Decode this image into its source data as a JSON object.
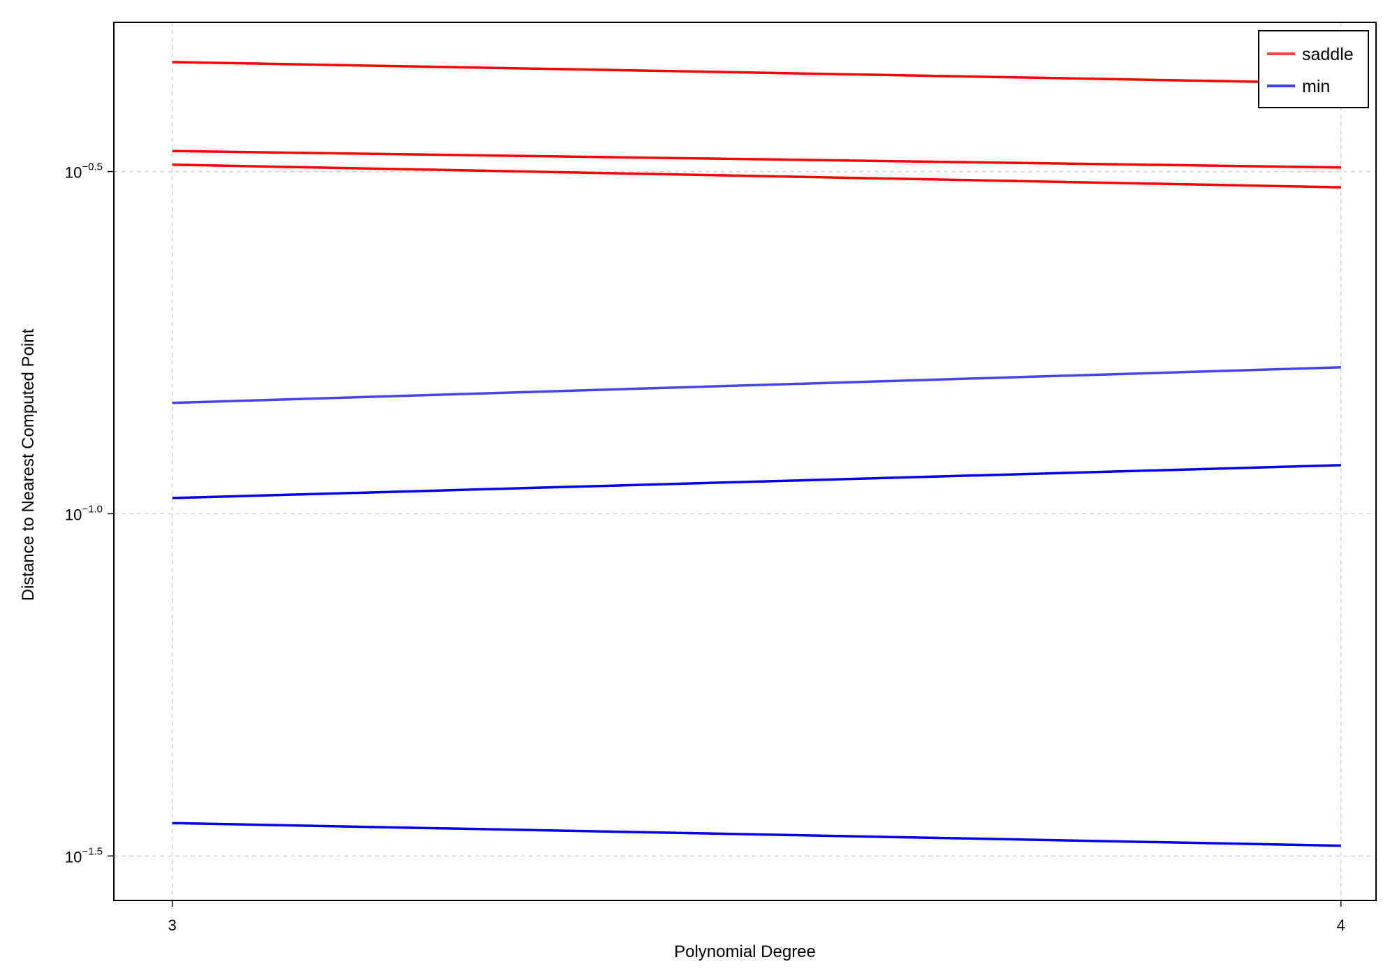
{
  "chart_data": {
    "type": "line",
    "xlabel": "Polynomial Degree",
    "ylabel": "Distance to Nearest Computed Point",
    "y_scale": "log10",
    "xlim": [
      2.95,
      4.03
    ],
    "ylim_log10": [
      -1.565,
      -0.282
    ],
    "x_ticks": [
      3,
      4
    ],
    "x_tick_labels": [
      "3",
      "4"
    ],
    "y_ticks_log10": [
      -0.5,
      -1.0,
      -1.5
    ],
    "y_tick_labels": [
      {
        "base": "10",
        "exp": "−0.5"
      },
      {
        "base": "10",
        "exp": "−1.0"
      },
      {
        "base": "10",
        "exp": "−1.5"
      }
    ],
    "grid": true,
    "legend_position": "top-right",
    "legend": [
      {
        "label": "saddle",
        "color": "#ff4444"
      },
      {
        "label": "min",
        "color": "#4444ee"
      }
    ],
    "x": [
      3,
      4
    ],
    "series": [
      {
        "category": "saddle",
        "color": "#ff0000",
        "log10_values": [
          -0.34,
          -0.371
        ]
      },
      {
        "category": "saddle",
        "color": "#ff0000",
        "log10_values": [
          -0.47,
          -0.494
        ]
      },
      {
        "category": "saddle",
        "color": "#ff0000",
        "log10_values": [
          -0.49,
          -0.523
        ]
      },
      {
        "category": "min",
        "color": "#4444ee",
        "log10_values": [
          -0.838,
          -0.786
        ]
      },
      {
        "category": "min",
        "color": "#0000ee",
        "log10_values": [
          -0.977,
          -0.929
        ]
      },
      {
        "category": "min",
        "color": "#0000ee",
        "log10_values": [
          -1.452,
          -1.485
        ]
      }
    ]
  }
}
